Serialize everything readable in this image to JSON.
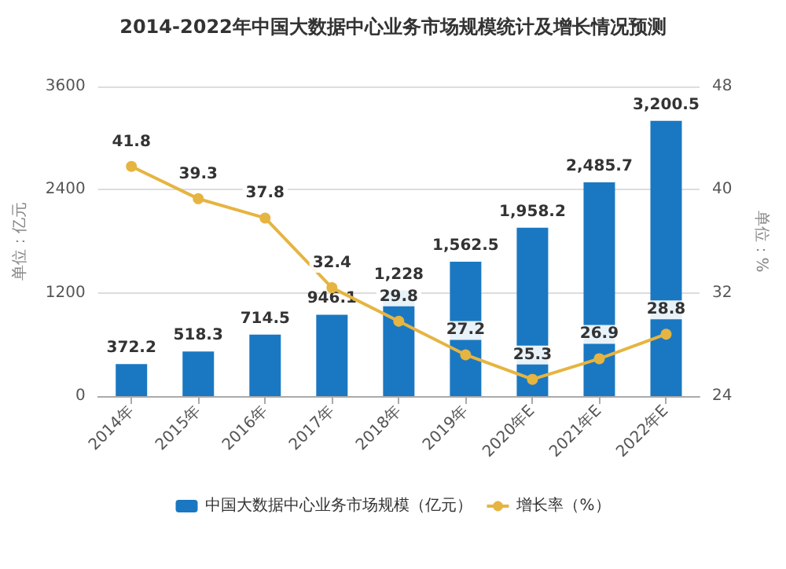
{
  "chart_data": {
    "type": "bar",
    "title": "2014-2022年中国大数据中心业务市场规模统计及增长情况预测",
    "ylabel": "单位：亿元",
    "y2label": "单位：%",
    "categories": [
      "2014年",
      "2015年",
      "2016年",
      "2017年",
      "2018年",
      "2019年",
      "2020年E",
      "2021年E",
      "2022年E"
    ],
    "series": [
      {
        "name": "中国大数据中心业务市场规模（亿元）",
        "color": "#1a78c2",
        "values": [
          372.2,
          518.3,
          714.5,
          946.1,
          1228,
          1562.5,
          1958.2,
          2485.7,
          3200.5
        ],
        "value_labels": [
          "372.2",
          "518.3",
          "714.5",
          "946.1",
          "1,228",
          "1,562.5",
          "1,958.2",
          "2,485.7",
          "3,200.5"
        ]
      },
      {
        "name": "增长率（%）",
        "type": "line",
        "axis": "y2",
        "color": "#e6b441",
        "marker": "circle",
        "data_labels": true,
        "values": [
          41.8,
          39.3,
          37.8,
          32.4,
          29.8,
          27.2,
          25.3,
          26.9,
          28.8
        ]
      }
    ],
    "ylim": [
      0,
      3600
    ],
    "yticks": [
      0,
      1200,
      2400,
      3600
    ],
    "y2lim": [
      24,
      48
    ],
    "y2ticks": [
      24,
      32,
      40,
      48
    ],
    "grid": "y",
    "legend": "bottom"
  }
}
